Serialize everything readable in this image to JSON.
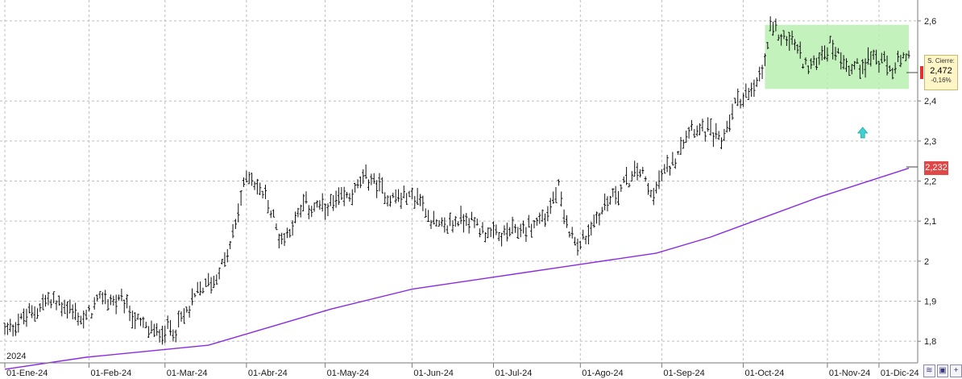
{
  "chart_data": {
    "type": "ohlc",
    "year_label": "2024",
    "ylim": [
      1.75,
      2.64
    ],
    "y_ticks": [
      "1,8",
      "1,9",
      "2",
      "2,1",
      "2,2",
      "2,3",
      "2,4",
      "2,6"
    ],
    "x_ticks": [
      "01-Ene-24",
      "01-Feb-24",
      "01-Mar-24",
      "01-Abr-24",
      "01-May-24",
      "01-Jun-24",
      "01-Jul-24",
      "01-Ago-24",
      "01-Sep-24",
      "01-Oct-24",
      "01-Nov-24",
      "01-Dic-24"
    ],
    "price_points": [
      [
        0,
        1.83
      ],
      [
        8,
        1.86
      ],
      [
        15,
        1.9
      ],
      [
        22,
        1.89
      ],
      [
        29,
        1.85
      ],
      [
        36,
        1.91
      ],
      [
        44,
        1.89
      ],
      [
        50,
        1.84
      ],
      [
        55,
        1.82
      ],
      [
        64,
        1.84
      ],
      [
        72,
        1.93
      ],
      [
        78,
        1.96
      ],
      [
        83,
        2.03
      ],
      [
        89,
        2.22
      ],
      [
        96,
        2.16
      ],
      [
        102,
        2.05
      ],
      [
        110,
        2.14
      ],
      [
        118,
        2.13
      ],
      [
        126,
        2.16
      ],
      [
        134,
        2.21
      ],
      [
        142,
        2.16
      ],
      [
        152,
        2.16
      ],
      [
        160,
        2.08
      ],
      [
        170,
        2.11
      ],
      [
        180,
        2.06
      ],
      [
        192,
        2.08
      ],
      [
        200,
        2.12
      ],
      [
        204,
        2.18
      ],
      [
        206,
        2.1
      ],
      [
        212,
        2.04
      ],
      [
        222,
        2.15
      ],
      [
        234,
        2.23
      ],
      [
        238,
        2.17
      ],
      [
        246,
        2.25
      ],
      [
        252,
        2.34
      ],
      [
        258,
        2.33
      ],
      [
        264,
        2.3
      ],
      [
        270,
        2.41
      ],
      [
        276,
        2.42
      ],
      [
        280,
        2.5
      ],
      [
        282,
        2.58
      ],
      [
        290,
        2.55
      ],
      [
        296,
        2.48
      ],
      [
        304,
        2.54
      ],
      [
        312,
        2.48
      ],
      [
        320,
        2.51
      ],
      [
        326,
        2.48
      ],
      [
        332,
        2.5
      ]
    ],
    "moving_average": {
      "points": [
        [
          0,
          1.73
        ],
        [
          30,
          1.76
        ],
        [
          60,
          1.78
        ],
        [
          75,
          1.79
        ],
        [
          90,
          1.82
        ],
        [
          120,
          1.88
        ],
        [
          150,
          1.93
        ],
        [
          180,
          1.96
        ],
        [
          210,
          1.99
        ],
        [
          240,
          2.02
        ],
        [
          260,
          2.06
        ],
        [
          280,
          2.11
        ],
        [
          300,
          2.16
        ],
        [
          333,
          2.232
        ]
      ],
      "last_value": "2,232",
      "color": "#8a2be2"
    },
    "highlight_zone": {
      "x_start": 280,
      "x_end": 333,
      "y_low": 2.43,
      "y_high": 2.59,
      "color": "#b8f0b0"
    },
    "up_arrow": {
      "x": 316,
      "y": 2.32,
      "color": "#3fd1d1"
    },
    "last_price": {
      "label": "S. Cierre:",
      "value": "2,472",
      "change": "-0,16%"
    },
    "colors": {
      "bars": "#111111",
      "grid": "#bdbdbd",
      "axis_marker": "#e04848"
    }
  }
}
